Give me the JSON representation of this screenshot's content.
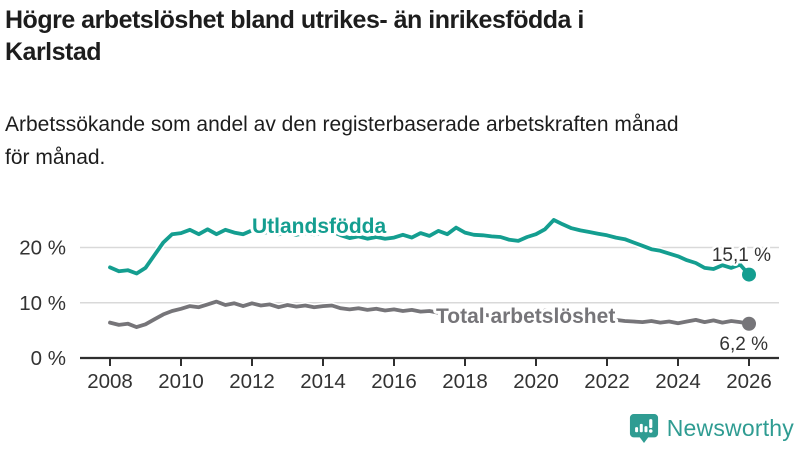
{
  "header": {
    "title": "Högre arbetslöshet bland utrikes- än inrikesfödda i\nKarlstad",
    "subtitle": "Arbetssökande som andel av den registerbaserade arbetskraften månad\nför månad."
  },
  "branding": {
    "logo_text": "Newsworthy",
    "logo_color": "#2f9c92",
    "icon_name": "newsworthy-bar-chart-bubble-icon"
  },
  "colors": {
    "accent_teal": "#149e90",
    "series_gray": "#767579",
    "axis": "#2f2f2f",
    "grid": "#d9d9d9",
    "text": "#1d1d1d",
    "tick_text": "#333333"
  },
  "chart_data": {
    "type": "line",
    "title": "Högre arbetslöshet bland utrikes- än inrikesfödda i Karlstad",
    "subtitle": "Arbetssökande som andel av den registerbaserade arbetskraften månad för månad.",
    "xlabel": "",
    "ylabel": "",
    "x_start": 2008,
    "x_step": 0.25,
    "xlim": [
      2008,
      2026.1
    ],
    "ylim": [
      0,
      27
    ],
    "grid": "horizontal",
    "legend_position": "inline-labels",
    "x_ticks": [
      "2008",
      "2010",
      "2012",
      "2014",
      "2016",
      "2018",
      "2020",
      "2022",
      "2024",
      "2026"
    ],
    "x_tick_values": [
      2008,
      2010,
      2012,
      2014,
      2016,
      2018,
      2020,
      2022,
      2024,
      2026
    ],
    "y_ticks": [
      0,
      10,
      20
    ],
    "y_tick_labels": [
      "0 %",
      "10 %",
      "20 %"
    ],
    "series": [
      {
        "name": "Utlandsfödda",
        "color": "#149e90",
        "end_label": "15,1 %",
        "end_value": 15.1,
        "values": [
          16.4,
          15.7,
          15.9,
          15.3,
          16.3,
          18.6,
          20.9,
          22.4,
          22.6,
          23.2,
          22.4,
          23.3,
          22.4,
          23.2,
          22.7,
          22.4,
          23.1,
          22.5,
          22.9,
          22.4,
          22.7,
          22.3,
          22.6,
          22.4,
          22.7,
          22.9,
          22.2,
          21.7,
          22.0,
          21.6,
          21.9,
          21.6,
          21.8,
          22.3,
          21.8,
          22.6,
          22.1,
          23.0,
          22.4,
          23.6,
          22.7,
          22.3,
          22.2,
          22.0,
          21.9,
          21.4,
          21.2,
          21.9,
          22.4,
          23.3,
          25.0,
          24.2,
          23.5,
          23.1,
          22.8,
          22.5,
          22.2,
          21.8,
          21.5,
          20.9,
          20.3,
          19.7,
          19.4,
          18.9,
          18.4,
          17.7,
          17.2,
          16.3,
          16.1,
          16.8,
          16.3,
          16.9,
          15.1
        ]
      },
      {
        "name": "Total arbetslöshet",
        "color": "#767579",
        "end_label": "6,2 %",
        "end_value": 6.2,
        "values": [
          6.4,
          6.0,
          6.2,
          5.6,
          6.1,
          7.0,
          7.9,
          8.5,
          8.9,
          9.4,
          9.2,
          9.7,
          10.2,
          9.6,
          9.9,
          9.4,
          9.9,
          9.5,
          9.7,
          9.2,
          9.6,
          9.3,
          9.5,
          9.2,
          9.4,
          9.5,
          9.0,
          8.8,
          9.0,
          8.7,
          8.9,
          8.6,
          8.8,
          8.5,
          8.7,
          8.4,
          8.5,
          8.2,
          8.3,
          8.0,
          8.1,
          7.8,
          7.9,
          7.6,
          7.5,
          7.3,
          7.4,
          7.7,
          8.0,
          8.6,
          8.4,
          8.2,
          7.9,
          7.7,
          7.5,
          7.3,
          7.1,
          6.9,
          6.7,
          6.6,
          6.5,
          6.7,
          6.4,
          6.6,
          6.3,
          6.6,
          6.9,
          6.5,
          6.8,
          6.4,
          6.7,
          6.5,
          6.2
        ]
      }
    ]
  }
}
